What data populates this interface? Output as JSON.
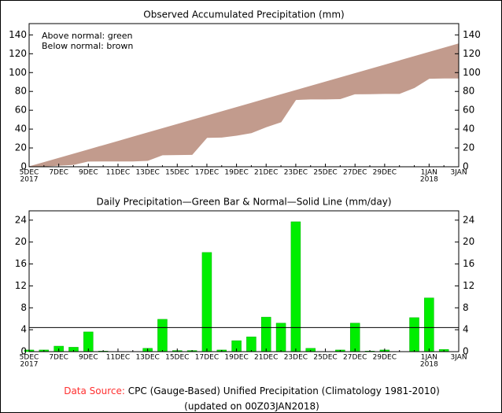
{
  "chart_data": [
    {
      "type": "area",
      "title": "Observed Accumulated Precipitation (mm)",
      "annotations": [
        "Above normal: green",
        "Below normal: brown"
      ],
      "above_color": "#00ff00",
      "below_color": "#c29b8d",
      "categories": [
        "5DEC",
        null,
        "7DEC",
        null,
        "9DEC",
        null,
        "11DEC",
        null,
        "13DEC",
        null,
        "15DEC",
        null,
        "17DEC",
        null,
        "19DEC",
        null,
        "21DEC",
        null,
        "23DEC",
        null,
        "25DEC",
        null,
        "27DEC",
        null,
        "29DEC",
        null,
        null,
        "1JAN",
        null,
        "3JAN"
      ],
      "years": [
        "2017",
        null,
        null,
        null,
        null,
        null,
        null,
        null,
        null,
        null,
        null,
        null,
        null,
        null,
        null,
        null,
        null,
        null,
        null,
        null,
        null,
        null,
        null,
        null,
        null,
        null,
        null,
        "2018",
        null,
        null
      ],
      "series": [
        {
          "values": [
            0.3,
            0.6,
            1.6,
            2.4,
            6.0,
            6.1,
            6.1,
            6.1,
            6.7,
            12.6,
            12.8,
            13.0,
            31.1,
            31.4,
            33.4,
            36.1,
            42.4,
            47.6,
            71.3,
            71.9,
            71.9,
            72.2,
            77.4,
            77.5,
            77.8,
            77.8,
            84.0,
            93.8,
            94.2,
            94.2
          ]
        },
        {
          "values": [
            0,
            4.5,
            9.0,
            13.5,
            18.0,
            22.5,
            27.0,
            31.5,
            36.0,
            40.5,
            45.0,
            49.5,
            54.0,
            58.5,
            63.0,
            67.5,
            72.0,
            76.5,
            81.0,
            85.5,
            90.0,
            94.5,
            99.0,
            103.5,
            108.0,
            112.5,
            117.0,
            121.5,
            126.0,
            130.5
          ]
        }
      ],
      "ylim": [
        0,
        152
      ],
      "yticks": [
        0,
        20,
        40,
        60,
        80,
        100,
        120,
        140
      ]
    },
    {
      "type": "bar",
      "title": "Daily Precipitation—Green Bar & Normal—Solid Line (mm/day)",
      "categories": [
        "5DEC",
        null,
        "7DEC",
        null,
        "9DEC",
        null,
        "11DEC",
        null,
        "13DEC",
        null,
        "15DEC",
        null,
        "17DEC",
        null,
        "19DEC",
        null,
        "21DEC",
        null,
        "23DEC",
        null,
        "25DEC",
        null,
        "27DEC",
        null,
        "29DEC",
        null,
        null,
        "1JAN",
        null,
        "3JAN"
      ],
      "years": [
        "2017",
        null,
        null,
        null,
        null,
        null,
        null,
        null,
        null,
        null,
        null,
        null,
        null,
        null,
        null,
        null,
        null,
        null,
        null,
        null,
        null,
        null,
        null,
        null,
        null,
        null,
        null,
        "2018",
        null,
        null
      ],
      "series": [
        {
          "color": "#00ee00",
          "values": [
            0.3,
            0.3,
            1.0,
            0.8,
            3.6,
            0.1,
            0,
            0,
            0.6,
            5.9,
            0.2,
            0.2,
            18.1,
            0.3,
            2.0,
            2.7,
            6.3,
            5.2,
            23.7,
            0.6,
            0,
            0.3,
            5.2,
            0.1,
            0.3,
            0,
            6.2,
            9.8,
            0.4,
            0
          ]
        },
        {
          "color": "#000000",
          "values": [
            4.4,
            4.4,
            4.4,
            4.4,
            4.4,
            4.4,
            4.4,
            4.4,
            4.4,
            4.4,
            4.4,
            4.4,
            4.4,
            4.4,
            4.4,
            4.4,
            4.4,
            4.4,
            4.4,
            4.4,
            4.4,
            4.4,
            4.4,
            4.4,
            4.4,
            4.4,
            4.4,
            4.4,
            4.4,
            4.4
          ]
        }
      ],
      "ylim": [
        0,
        25.7
      ],
      "yticks": [
        0,
        4,
        8,
        12,
        16,
        20,
        24
      ]
    }
  ],
  "footer": {
    "source_label": "Data Source:",
    "source": "CPC (Gauge-Based) Unified Precipitation (Climatology 1981-2010)",
    "updated": "(updated on 00Z03JAN2018)"
  }
}
